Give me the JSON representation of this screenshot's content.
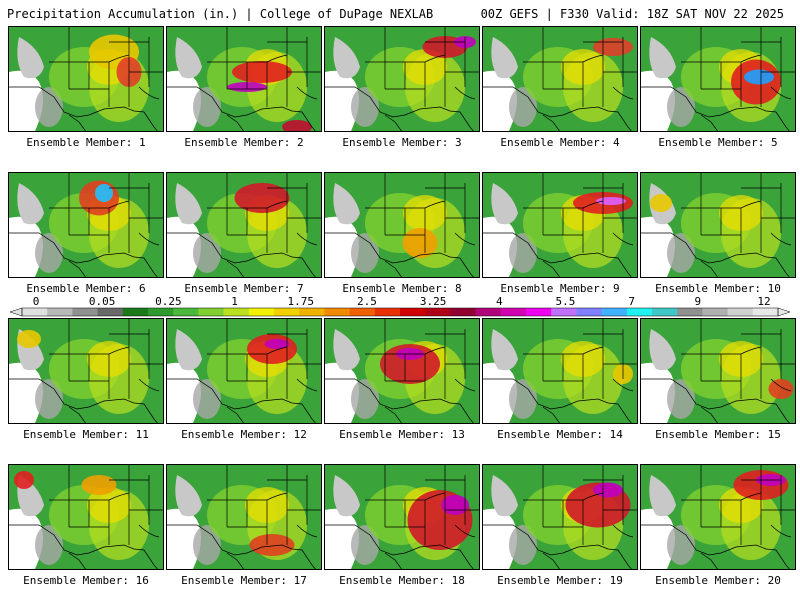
{
  "header": {
    "left": "Precipitation Accumulation (in.) | College of DuPage NEXLAB",
    "right": "00Z GEFS | F330 Valid: 18Z SAT NOV 22 2025"
  },
  "members": [
    {
      "label": "Ensemble Member: 1",
      "hot": [
        [
          105,
          25,
          50,
          35,
          "#e8c800"
        ],
        [
          120,
          45,
          25,
          30,
          "#e0402a"
        ]
      ]
    },
    {
      "label": "Ensemble Member: 2",
      "hot": [
        [
          95,
          45,
          60,
          22,
          "#e02020"
        ],
        [
          80,
          60,
          40,
          10,
          "#c000c0"
        ],
        [
          130,
          100,
          30,
          14,
          "#c01030"
        ]
      ]
    },
    {
      "label": "Ensemble Member: 3",
      "hot": [
        [
          120,
          20,
          45,
          22,
          "#d01a2a"
        ],
        [
          140,
          15,
          22,
          12,
          "#c000c0"
        ]
      ]
    },
    {
      "label": "Ensemble Member: 4",
      "hot": [
        [
          130,
          20,
          40,
          18,
          "#e0402a"
        ]
      ]
    },
    {
      "label": "Ensemble Member: 5",
      "hot": [
        [
          115,
          55,
          50,
          45,
          "#e02020"
        ],
        [
          118,
          50,
          30,
          15,
          "#20a0ff"
        ]
      ]
    },
    {
      "label": "Ensemble Member: 6",
      "hot": [
        [
          90,
          25,
          40,
          35,
          "#e04020"
        ],
        [
          95,
          20,
          18,
          18,
          "#20c0ff"
        ]
      ]
    },
    {
      "label": "Ensemble Member: 7",
      "hot": [
        [
          95,
          25,
          55,
          30,
          "#d01a2a"
        ]
      ]
    },
    {
      "label": "Ensemble Member: 8",
      "hot": [
        [
          95,
          70,
          35,
          30,
          "#f0a000"
        ]
      ]
    },
    {
      "label": "Ensemble Member: 9",
      "hot": [
        [
          120,
          30,
          60,
          22,
          "#e02020"
        ],
        [
          128,
          28,
          30,
          8,
          "#e060ff"
        ]
      ]
    },
    {
      "label": "Ensemble Member: 10",
      "hot": [
        [
          20,
          30,
          22,
          18,
          "#e8c800"
        ]
      ]
    },
    {
      "label": "Ensemble Member: 11",
      "hot": [
        [
          20,
          20,
          24,
          18,
          "#e8c800"
        ]
      ]
    },
    {
      "label": "Ensemble Member: 12",
      "hot": [
        [
          105,
          30,
          50,
          30,
          "#e02020"
        ],
        [
          110,
          25,
          25,
          10,
          "#c000c0"
        ]
      ]
    },
    {
      "label": "Ensemble Member: 13",
      "hot": [
        [
          85,
          45,
          60,
          40,
          "#d01a2a"
        ],
        [
          85,
          35,
          28,
          12,
          "#c000c0"
        ]
      ]
    },
    {
      "label": "Ensemble Member: 14",
      "hot": [
        [
          140,
          55,
          20,
          20,
          "#e8c800"
        ]
      ]
    },
    {
      "label": "Ensemble Member: 15",
      "hot": [
        [
          140,
          70,
          25,
          20,
          "#e04020"
        ]
      ]
    },
    {
      "label": "Ensemble Member: 16",
      "hot": [
        [
          15,
          15,
          20,
          18,
          "#e02020"
        ],
        [
          90,
          20,
          35,
          20,
          "#f0a000"
        ]
      ]
    },
    {
      "label": "Ensemble Member: 17",
      "hot": [
        [
          105,
          80,
          45,
          22,
          "#e04020"
        ]
      ]
    },
    {
      "label": "Ensemble Member: 18",
      "hot": [
        [
          115,
          55,
          65,
          60,
          "#d01a2a"
        ],
        [
          130,
          40,
          28,
          20,
          "#c000c0"
        ]
      ]
    },
    {
      "label": "Ensemble Member: 19",
      "hot": [
        [
          115,
          40,
          65,
          45,
          "#d01a2a"
        ],
        [
          125,
          25,
          30,
          15,
          "#c000c0"
        ]
      ]
    },
    {
      "label": "Ensemble Member: 20",
      "hot": [
        [
          120,
          20,
          55,
          30,
          "#e02020"
        ],
        [
          130,
          15,
          30,
          12,
          "#c000c0"
        ]
      ]
    }
  ],
  "colorbar": {
    "labels": [
      "0",
      "0.05",
      "0.25",
      "1",
      "1.75",
      "2.5",
      "3.25",
      "4",
      "5.5",
      "7",
      "9",
      "12"
    ],
    "colors": [
      "#e0e0e0",
      "#b8b8b8",
      "#909090",
      "#686868",
      "#1a7a1a",
      "#2e9a2e",
      "#4ab83a",
      "#7fcf30",
      "#b8e020",
      "#f0f000",
      "#f0d000",
      "#f0b000",
      "#f08a00",
      "#f06000",
      "#e83000",
      "#d00000",
      "#b00018",
      "#900030",
      "#b0007a",
      "#d000b0",
      "#f000f0",
      "#c070ff",
      "#8080ff",
      "#40b0ff",
      "#20f0f0",
      "#40c8c8",
      "#909090",
      "#b0b0b0",
      "#d0d0d0",
      "#e8e8e8"
    ]
  }
}
